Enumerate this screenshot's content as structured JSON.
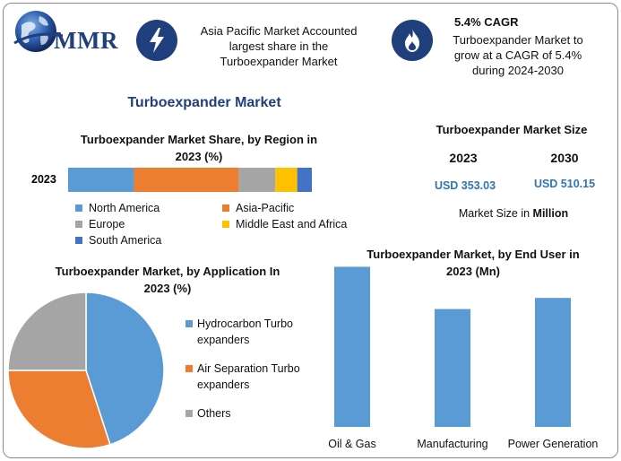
{
  "brand": {
    "logo_text": "MMR",
    "logo_icon": "globe-icon"
  },
  "info_cards": [
    {
      "icon": "lightning-icon",
      "text_lines": [
        "Asia Pacific Market Accounted",
        "largest share in the",
        "Turboexpander Market"
      ]
    },
    {
      "icon": "flame-icon",
      "heading": "5.4% CAGR",
      "text_lines": [
        "Turboexpander Market to",
        "grow at a CAGR of 5.4%",
        "during 2024-2030"
      ]
    }
  ],
  "main_title": "Turboexpander Market",
  "market_size": {
    "title": "Turboexpander Market Size",
    "years": [
      "2023",
      "2030"
    ],
    "values": [
      "USD 353.03",
      "USD 510.15"
    ],
    "unit_note_prefix": "Market Size in ",
    "unit_note_bold": "Million"
  },
  "colors": {
    "brand": "#1f3f7d",
    "north_america": "#5b9bd5",
    "asia_pacific": "#ed7d31",
    "europe": "#a5a5a5",
    "mea": "#ffc000",
    "south_america": "#4472c4",
    "value_text": "#2e75b6"
  },
  "chart_data": [
    {
      "type": "bar",
      "orientation": "horizontal-stacked",
      "title_lines": [
        "Turboexpander Market Share, by Region in",
        "2023 (%)"
      ],
      "categories": [
        "2023"
      ],
      "series": [
        {
          "name": "North America",
          "values": [
            27
          ],
          "color": "#5b9bd5"
        },
        {
          "name": "Asia-Pacific",
          "values": [
            43
          ],
          "color": "#ed7d31"
        },
        {
          "name": "Europe",
          "values": [
            15
          ],
          "color": "#a5a5a5"
        },
        {
          "name": "Middle East and Africa",
          "values": [
            9
          ],
          "color": "#ffc000"
        },
        {
          "name": "South America",
          "values": [
            6
          ],
          "color": "#4472c4"
        }
      ],
      "xlim": [
        0,
        100
      ],
      "legend": "bottom",
      "grid": false
    },
    {
      "type": "pie",
      "title_lines": [
        "Turboexpander Market, by Application In",
        "2023 (%)"
      ],
      "slices": [
        {
          "name": "Hydrocarbon Turbo expanders",
          "label_lines": [
            "Hydrocarbon Turbo",
            "expanders"
          ],
          "value": 45,
          "color": "#5b9bd5"
        },
        {
          "name": "Air Separation Turbo expanders",
          "label_lines": [
            "Air Separation Turbo",
            "expanders"
          ],
          "value": 30,
          "color": "#ed7d31"
        },
        {
          "name": "Others",
          "label_lines": [
            "Others"
          ],
          "value": 25,
          "color": "#a5a5a5"
        }
      ],
      "legend": "right"
    },
    {
      "type": "bar",
      "title_lines": [
        "Turboexpander Market, by End User in",
        "2023 (Mn)"
      ],
      "categories": [
        "Oil & Gas",
        "Manufacturing",
        "Power Generation"
      ],
      "values": [
        144,
        106,
        116
      ],
      "ylim": [
        0,
        150
      ],
      "color": "#5b9bd5",
      "grid": false
    }
  ]
}
